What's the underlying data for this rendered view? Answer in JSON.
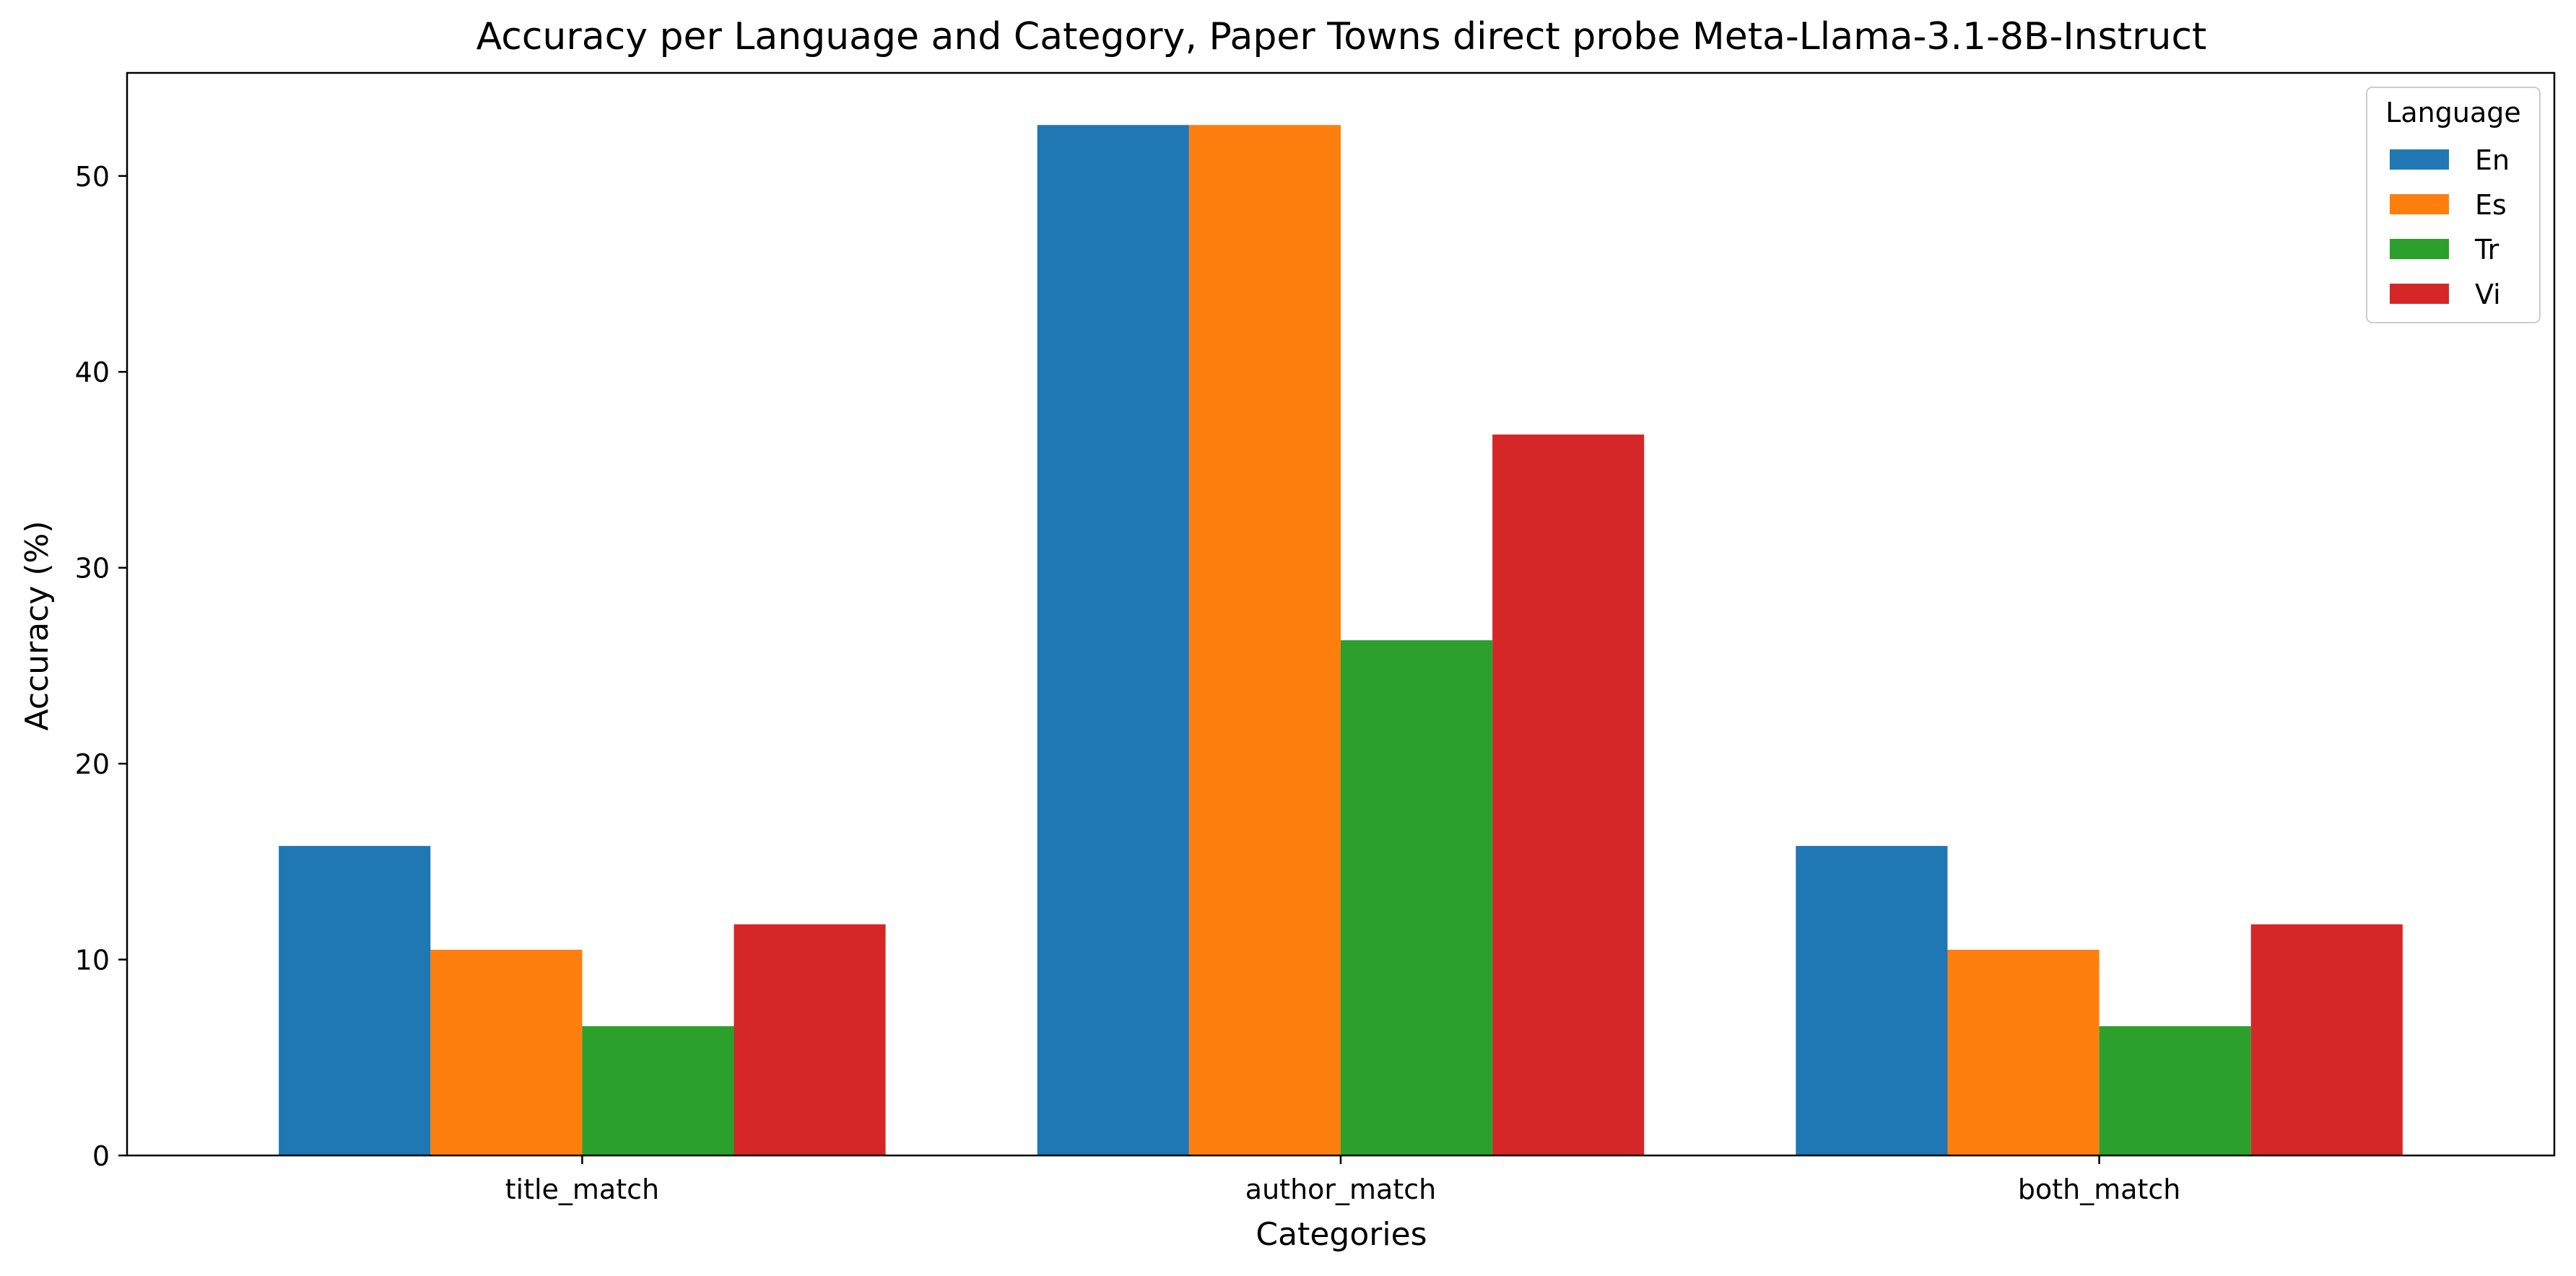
{
  "chart_data": {
    "type": "bar",
    "title": "Accuracy per Language and Category, Paper Towns direct probe Meta-Llama-3.1-8B-Instruct",
    "xlabel": "Categories",
    "ylabel": "Accuracy (%)",
    "categories": [
      "title_match",
      "author_match",
      "both_match"
    ],
    "series": [
      {
        "name": "En",
        "color": "#1f77b4",
        "values": [
          15.8,
          52.6,
          15.8
        ]
      },
      {
        "name": "Es",
        "color": "#ff7f0e",
        "values": [
          10.5,
          52.6,
          10.5
        ]
      },
      {
        "name": "Tr",
        "color": "#2ca02c",
        "values": [
          6.6,
          26.3,
          6.6
        ]
      },
      {
        "name": "Vi",
        "color": "#d62728",
        "values": [
          11.8,
          36.8,
          11.8
        ]
      }
    ],
    "ylim": [
      0,
      55.26
    ],
    "yticks": [
      0,
      10,
      20,
      30,
      40,
      50
    ],
    "grid": false,
    "legend": {
      "title": "Language",
      "placement": "top-right"
    }
  }
}
